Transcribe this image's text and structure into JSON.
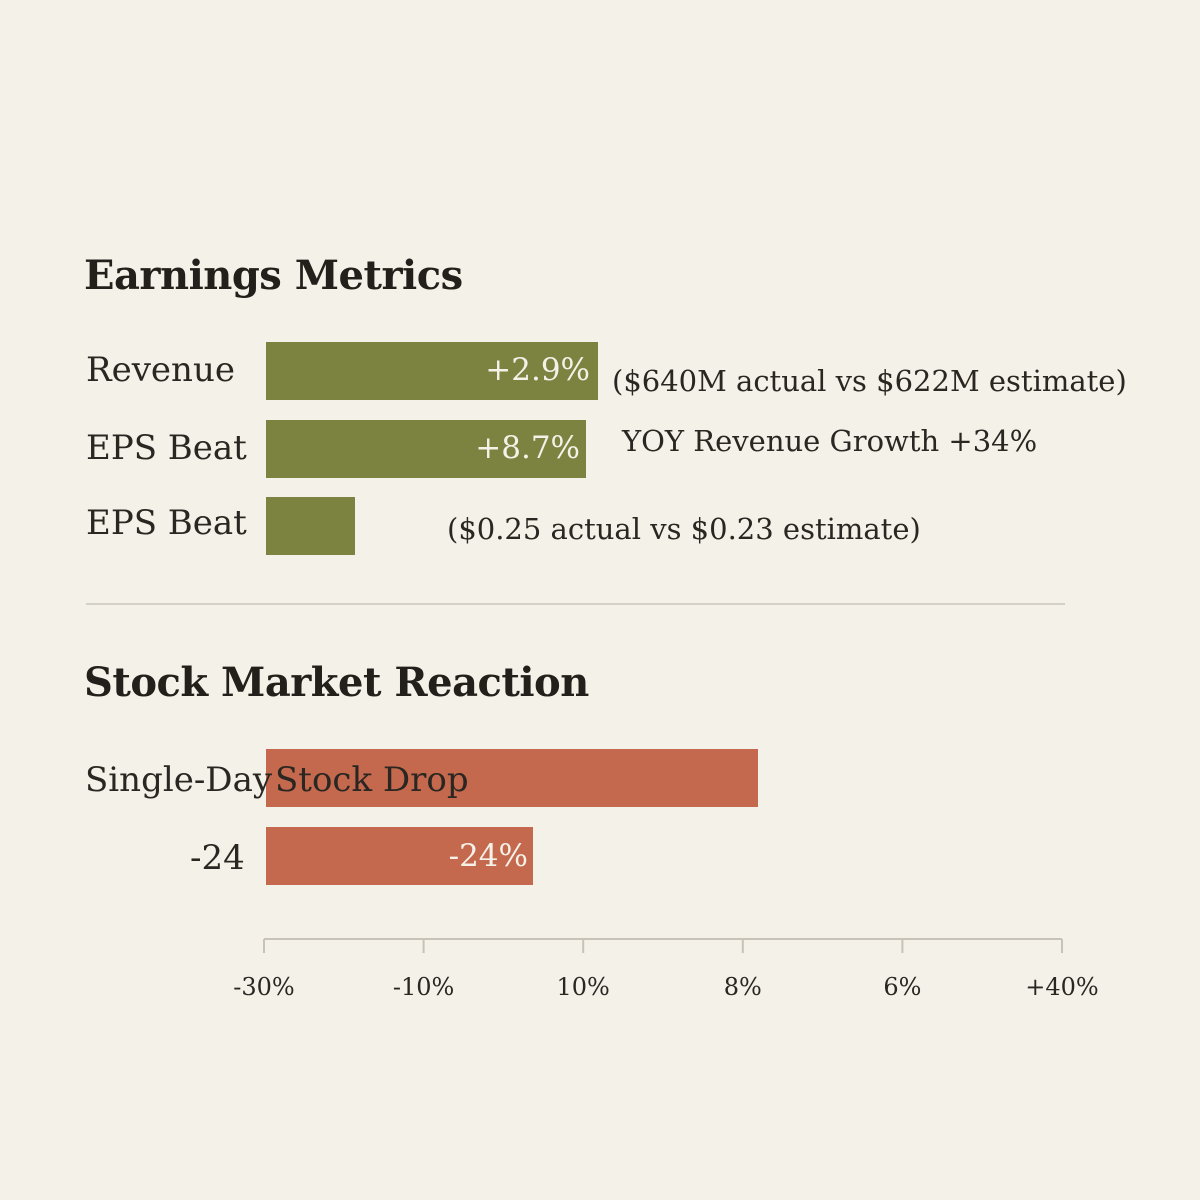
{
  "chart_data": [
    {
      "type": "bar",
      "orientation": "horizontal",
      "title": "Earnings Metrics",
      "rows": [
        {
          "label": "Revenue",
          "value": 2.9,
          "value_label": "+2.9%",
          "note": "($640M actual vs $622M estimate)",
          "color": "#7c8341"
        },
        {
          "label": "EPS Beat",
          "value": 8.7,
          "value_label": "+8.7%",
          "note": "YOY Revenue Growth +34%",
          "color": "#7c8341"
        },
        {
          "label": "EPS Beat",
          "value": null,
          "value_label": "",
          "note": "($0.25 actual vs $0.23 estimate)",
          "color": "#7c8341"
        }
      ]
    },
    {
      "type": "bar",
      "orientation": "horizontal",
      "title": "Stock Market Reaction",
      "rows": [
        {
          "label": "Single-Day",
          "inner_label": "Stock Drop",
          "value": null,
          "value_label": "",
          "color": "#c4694d"
        },
        {
          "label": "-24",
          "value": -24,
          "value_label": "-24%",
          "color": "#c4694d"
        }
      ],
      "x_axis": {
        "tick_labels": [
          "-30%",
          "-10%",
          "10%",
          "8%",
          "6%",
          "+40%"
        ]
      }
    }
  ]
}
